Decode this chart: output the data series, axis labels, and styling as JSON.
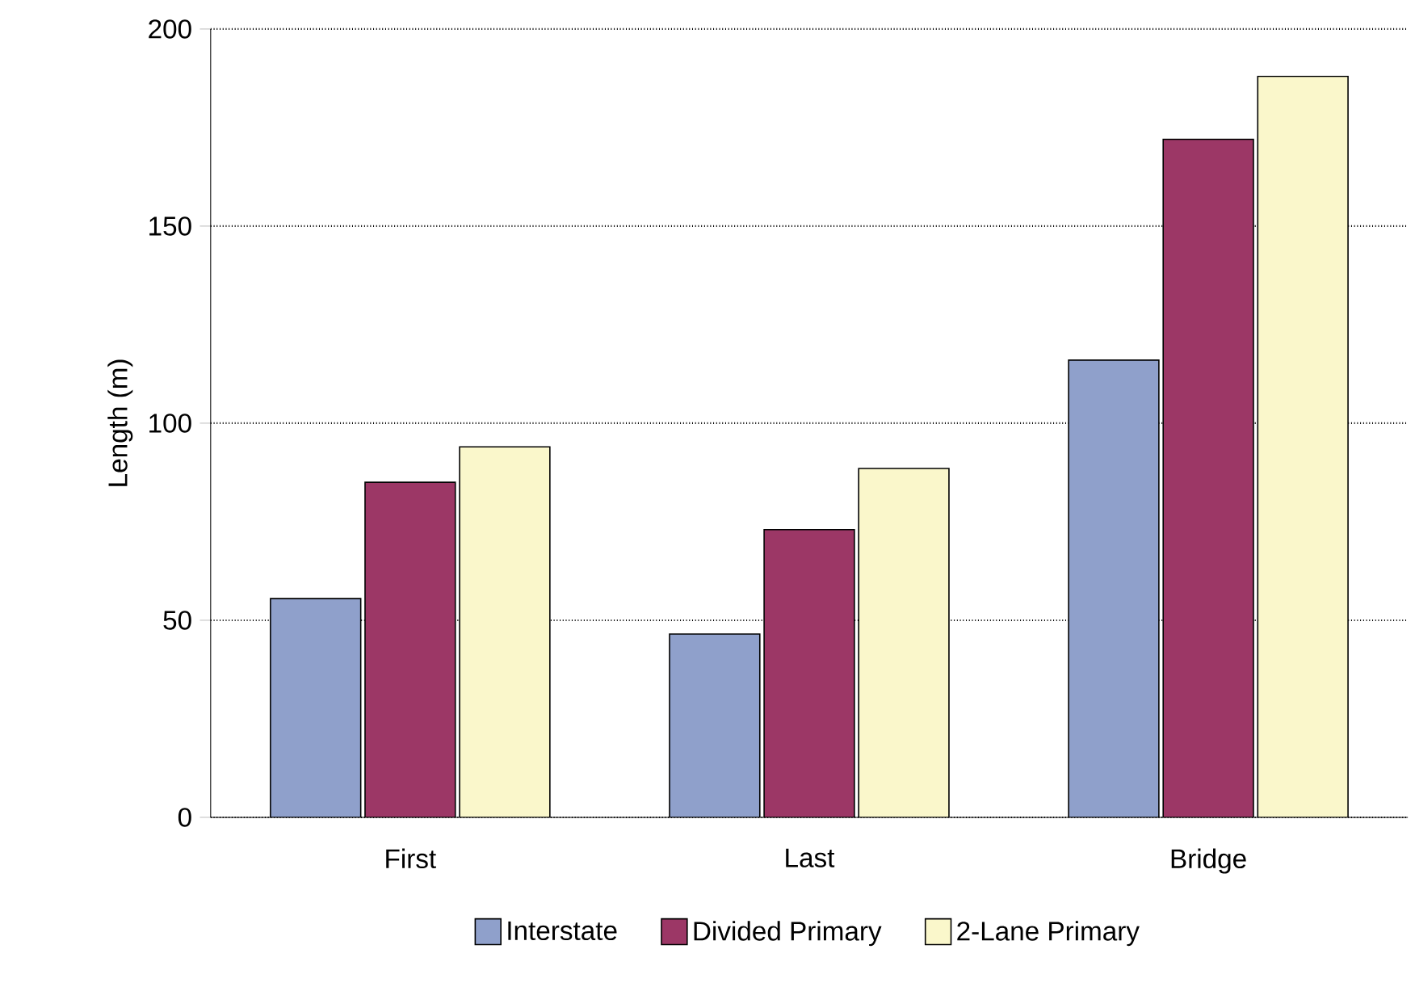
{
  "chart_data": {
    "type": "bar",
    "ylabel": "Length (m)",
    "categories": [
      "First",
      "Last",
      "Bridge"
    ],
    "series": [
      {
        "name": "Interstate",
        "color": "#8fa0cb",
        "values": [
          55.5,
          46.5,
          116
        ]
      },
      {
        "name": "Divided Primary",
        "color": "#9c3766",
        "values": [
          85,
          73,
          172
        ]
      },
      {
        "name": "2-Lane Primary",
        "color": "#faf7cb",
        "values": [
          94,
          88.5,
          188
        ]
      }
    ],
    "ylim": [
      0,
      200
    ],
    "yticks": [
      0,
      50,
      100,
      150,
      200
    ],
    "grid": "y",
    "legend": "bottom"
  }
}
